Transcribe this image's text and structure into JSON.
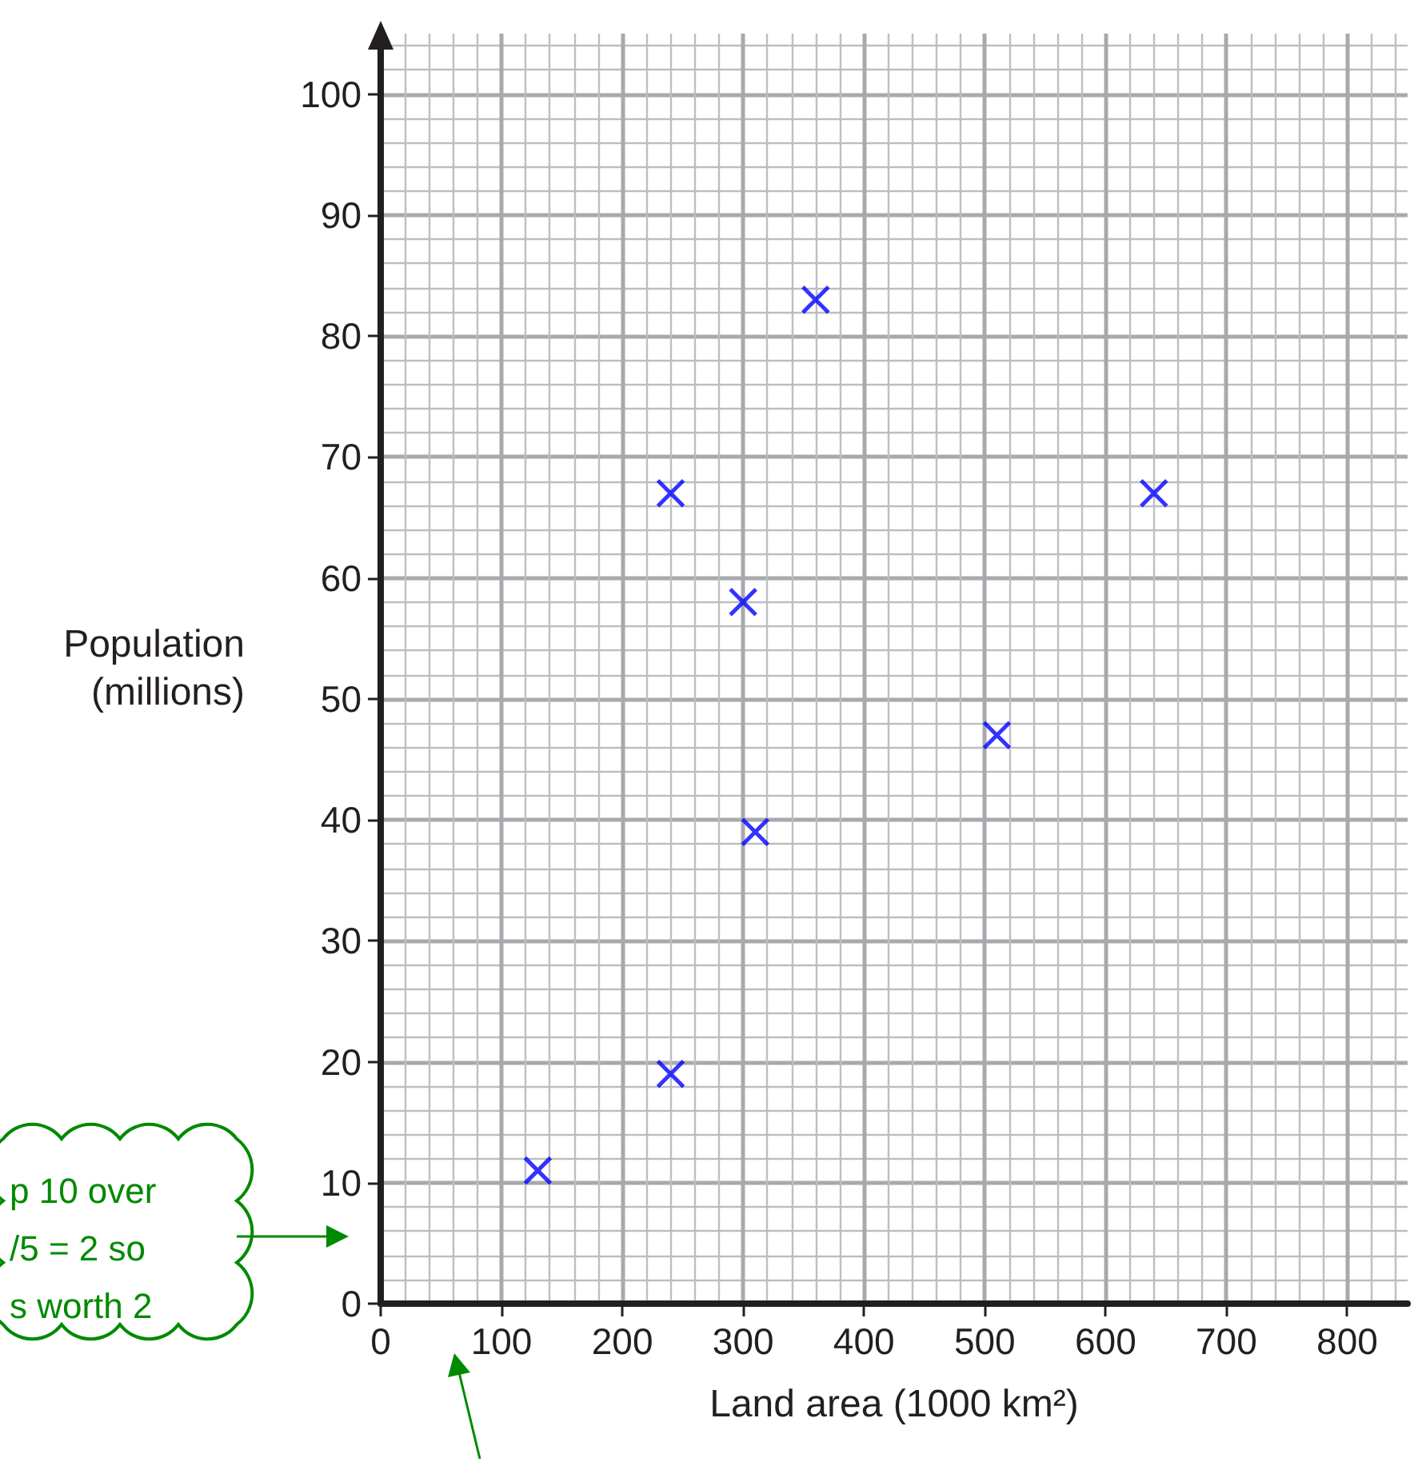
{
  "chart_data": {
    "type": "scatter",
    "xlabel": "Land area (1000 km²)",
    "ylabel": "Population\n(millions)",
    "x": [
      130,
      240,
      240,
      300,
      310,
      360,
      510,
      640
    ],
    "series": [
      {
        "color": "#0000ff",
        "values": [
          11,
          19,
          67,
          58,
          39,
          83,
          47,
          67
        ]
      }
    ],
    "xlim": [
      0,
      850
    ],
    "xticks": [
      0,
      100,
      200,
      300,
      400,
      500,
      600,
      700,
      800
    ],
    "ylim": [
      0,
      105
    ],
    "yticks": [
      0,
      10,
      20,
      30,
      40,
      50,
      60,
      70,
      80,
      90,
      100
    ],
    "grid": true,
    "marker": "cross",
    "annotations": [
      "p 10 over",
      "/5 = 2 so",
      "s worth 2"
    ]
  }
}
